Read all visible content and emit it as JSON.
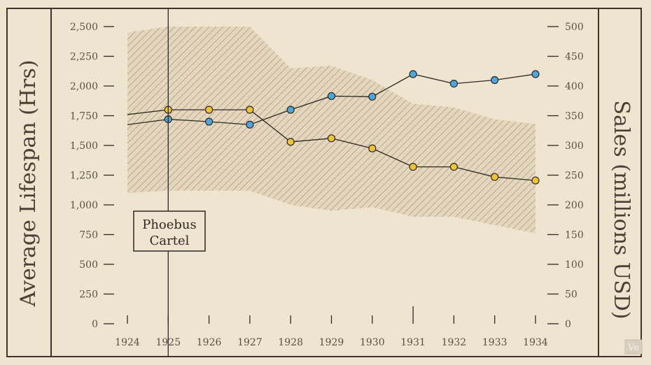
{
  "chart_data": {
    "type": "line",
    "x": [
      1924,
      1925,
      1926,
      1927,
      1928,
      1929,
      1930,
      1931,
      1932,
      1933,
      1934
    ],
    "left_axis": {
      "label": "Average Lifespan (Hrs)",
      "ticks": [
        0,
        250,
        500,
        750,
        1000,
        1250,
        1500,
        1750,
        2000,
        2250,
        2500
      ],
      "tick_labels": [
        "0",
        "250",
        "500",
        "750",
        "1,000",
        "1,250",
        "1,500",
        "1,750",
        "2,000",
        "2,250",
        "2,500"
      ],
      "range": [
        0,
        2500
      ]
    },
    "right_axis": {
      "label": "Sales (millions USD)",
      "ticks": [
        0,
        50,
        100,
        150,
        200,
        250,
        300,
        350,
        400,
        450,
        500
      ],
      "tick_labels": [
        "0",
        "50",
        "100",
        "150",
        "200",
        "250",
        "300",
        "350",
        "400",
        "450",
        "500"
      ],
      "range": [
        0,
        500
      ]
    },
    "x_tick_labels": [
      "1924",
      "1925",
      "1926",
      "1927",
      "1928",
      "1929",
      "1930",
      "1931",
      "1932",
      "1933",
      "1934"
    ],
    "series": [
      {
        "axis": "left",
        "color": "#f2c335",
        "values": [
          1760,
          1800,
          1800,
          1800,
          1530,
          1560,
          1475,
          1320,
          1320,
          1235,
          1205
        ],
        "marker_from_index": 1
      },
      {
        "axis": "right",
        "color": "#4ea6dc",
        "values": [
          335,
          344,
          340,
          335,
          360,
          383,
          382,
          420,
          404,
          410,
          420
        ],
        "marker_from_index": 1
      }
    ],
    "band": {
      "axis": "left",
      "x": [
        1924,
        1925,
        1926,
        1927,
        1928,
        1929,
        1930,
        1931,
        1932,
        1933,
        1934
      ],
      "upper": [
        2450,
        2500,
        2500,
        2500,
        2150,
        2170,
        2050,
        1850,
        1820,
        1720,
        1680
      ],
      "lower": [
        1100,
        1120,
        1120,
        1120,
        1000,
        950,
        980,
        900,
        900,
        830,
        760
      ]
    },
    "annotation": {
      "lines": [
        "Phoebus",
        "Cartel"
      ],
      "year": 1925
    },
    "grid": false
  },
  "watermark": "Ve",
  "colors": {
    "background": "#efe4cf",
    "ink": "#2e2823",
    "band_hatch": "#b7a58d"
  }
}
